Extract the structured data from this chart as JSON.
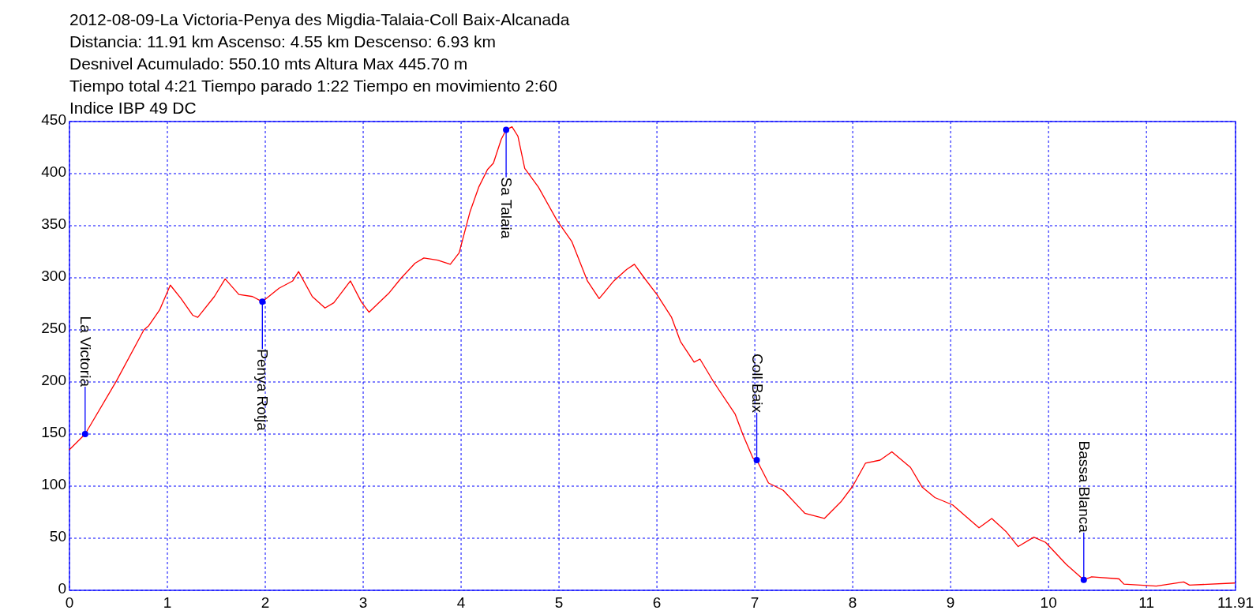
{
  "chart_data": {
    "type": "line",
    "title": "2012-08-09-La Victoria-Penya des Migdia-Talaia-Coll Baix-Alcanada",
    "subtitle": "Distancia: 11.91 km Ascenso: 4.55 km Descenso: 6.93 km\nDesnivel Acumulado: 550.10 mts  Altura Max 445.70 m\nTiempo total 4:21 Tiempo parado 1:22 Tiempo en movimiento 2:60\nIndice IBP 49 DC",
    "series": [
      {
        "color": "#ff0000",
        "x": [
          0,
          0.16,
          0.48,
          0.76,
          0.81,
          0.92,
          1.03,
          1.14,
          1.26,
          1.31,
          1.48,
          1.59,
          1.73,
          1.87,
          1.97,
          2.14,
          2.28,
          2.34,
          2.48,
          2.61,
          2.7,
          2.87,
          2.98,
          3.06,
          3.26,
          3.39,
          3.53,
          3.62,
          3.76,
          3.89,
          3.98,
          4.09,
          4.18,
          4.27,
          4.33,
          4.41,
          4.46,
          4.52,
          4.58,
          4.65,
          4.79,
          4.98,
          5.13,
          5.29,
          5.41,
          5.56,
          5.69,
          5.77,
          5.87,
          6.0,
          6.15,
          6.24,
          6.38,
          6.44,
          6.58,
          6.8,
          6.88,
          6.98,
          7.02,
          7.14,
          7.29,
          7.51,
          7.71,
          7.88,
          8.0,
          8.13,
          8.28,
          8.4,
          8.59,
          8.71,
          8.84,
          9.02,
          9.29,
          9.42,
          9.57,
          9.69,
          9.85,
          9.97,
          10.18,
          10.36,
          10.44,
          10.72,
          10.77,
          11.1,
          11.38,
          11.44,
          11.9
        ],
        "values": [
          135,
          150,
          201,
          250,
          254,
          269,
          293,
          280,
          264,
          262,
          282,
          299,
          284,
          282,
          277,
          290,
          297,
          306,
          282,
          271,
          276,
          297,
          277,
          267,
          285,
          300,
          314,
          319,
          317,
          313,
          324,
          363,
          387,
          404,
          410,
          433,
          442,
          445,
          436,
          405,
          387,
          355,
          335,
          297,
          280,
          297,
          308,
          313,
          300,
          284,
          262,
          239,
          219,
          222,
          200,
          169,
          149,
          127,
          125,
          103,
          96,
          74,
          69,
          85,
          100,
          122,
          125,
          133,
          118,
          99,
          89,
          82,
          60,
          69,
          56,
          42,
          51,
          46,
          25,
          10,
          13,
          11,
          6,
          4,
          8,
          5,
          7
        ]
      }
    ],
    "xlim": [
      0,
      11.91
    ],
    "xticks": [
      0,
      1,
      2,
      3,
      4,
      5,
      6,
      7,
      8,
      9,
      10,
      11,
      11.91
    ],
    "ylim": [
      0,
      450
    ],
    "yticks": [
      0,
      50,
      100,
      150,
      200,
      250,
      300,
      350,
      400,
      450
    ],
    "grid": true,
    "marker": "none",
    "line_style": "solid",
    "annotations": [
      {
        "text": "La Victoria",
        "x": 0.16,
        "y": 150
      },
      {
        "text": "Penya Rotja",
        "x": 1.97,
        "y": 277
      },
      {
        "text": "Sa Talaia",
        "x": 4.46,
        "y": 442
      },
      {
        "text": "Coll Baix",
        "x": 7.02,
        "y": 125
      },
      {
        "text": "Bassa Blanca",
        "x": 10.36,
        "y": 10
      }
    ]
  }
}
